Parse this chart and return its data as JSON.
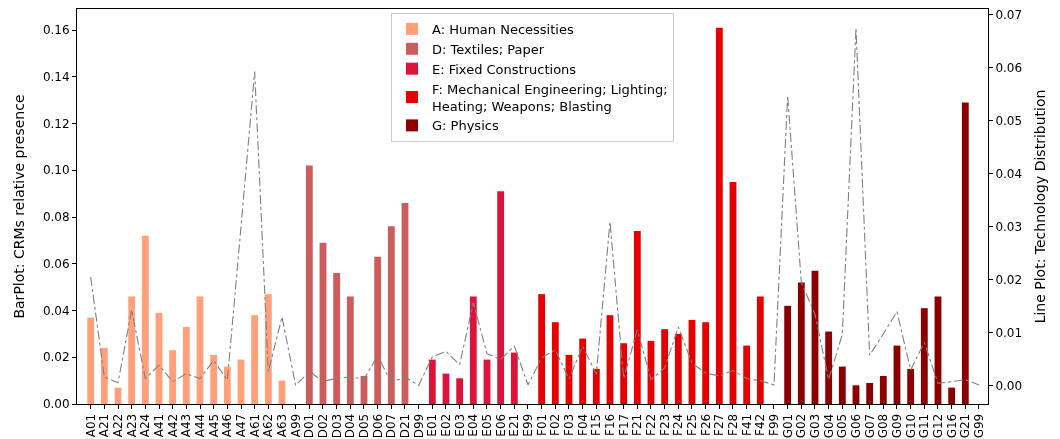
{
  "chart_data": {
    "type": "bar",
    "ylabel": "BarPlot: CRMs relative presence",
    "y2label": "Line Plot: Technology Distribution",
    "categories": [
      "A01",
      "A21",
      "A22",
      "A23",
      "A24",
      "A41",
      "A42",
      "A43",
      "A44",
      "A45",
      "A46",
      "A47",
      "A61",
      "A62",
      "A63",
      "A99",
      "D01",
      "D02",
      "D03",
      "D04",
      "D05",
      "D06",
      "D07",
      "D21",
      "D99",
      "E01",
      "E02",
      "E03",
      "E04",
      "E05",
      "E06",
      "E21",
      "E99",
      "F01",
      "F02",
      "F03",
      "F04",
      "F15",
      "F16",
      "F17",
      "F21",
      "F22",
      "F23",
      "F24",
      "F25",
      "F26",
      "F27",
      "F28",
      "F41",
      "F42",
      "F99",
      "G01",
      "G02",
      "G03",
      "G04",
      "G05",
      "G06",
      "G07",
      "G08",
      "G09",
      "G10",
      "G11",
      "G12",
      "G16",
      "G21",
      "G99"
    ],
    "series": [
      {
        "name": "A: Human Necessities",
        "color": "#ffa07a",
        "values": [
          0.037,
          0.024,
          0.007,
          0.046,
          0.072,
          0.039,
          0.023,
          0.033,
          0.046,
          0.021,
          0.016,
          0.019,
          0.038,
          0.047,
          0.01,
          0,
          null,
          null,
          null,
          null,
          null,
          null,
          null,
          null,
          null,
          null,
          null,
          null,
          null,
          null,
          null,
          null,
          null,
          null,
          null,
          null,
          null,
          null,
          null,
          null,
          null,
          null,
          null,
          null,
          null,
          null,
          null,
          null,
          null,
          null,
          null,
          null,
          null,
          null,
          null,
          null,
          null,
          null,
          null,
          null,
          null,
          null,
          null,
          null,
          null,
          null
        ]
      },
      {
        "name": "D: Textiles; Paper",
        "color": "#cd5c5c",
        "values": [
          null,
          null,
          null,
          null,
          null,
          null,
          null,
          null,
          null,
          null,
          null,
          null,
          null,
          null,
          null,
          null,
          0.102,
          0.069,
          0.056,
          0.046,
          0.012,
          0.063,
          0.076,
          0.086,
          0,
          null,
          null,
          null,
          null,
          null,
          null,
          null,
          null,
          null,
          null,
          null,
          null,
          null,
          null,
          null,
          null,
          null,
          null,
          null,
          null,
          null,
          null,
          null,
          null,
          null,
          null,
          null,
          null,
          null,
          null,
          null,
          null,
          null,
          null,
          null,
          null,
          null,
          null,
          null,
          null,
          null
        ]
      },
      {
        "name": "E: Fixed Constructions",
        "color": "#dc143c",
        "values": [
          null,
          null,
          null,
          null,
          null,
          null,
          null,
          null,
          null,
          null,
          null,
          null,
          null,
          null,
          null,
          null,
          null,
          null,
          null,
          null,
          null,
          null,
          null,
          null,
          null,
          0.019,
          0.013,
          0.011,
          0.046,
          0.019,
          0.091,
          0.022,
          0,
          null,
          null,
          null,
          null,
          null,
          null,
          null,
          null,
          null,
          null,
          null,
          null,
          null,
          null,
          null,
          null,
          null,
          null,
          null,
          null,
          null,
          null,
          null,
          null,
          null,
          null,
          null,
          null,
          null,
          null,
          null,
          null,
          null
        ]
      },
      {
        "name": "F: Mechanical Engineering; Lighting; Heating; Weapons; Blasting",
        "color": "#e60000",
        "values": [
          null,
          null,
          null,
          null,
          null,
          null,
          null,
          null,
          null,
          null,
          null,
          null,
          null,
          null,
          null,
          null,
          null,
          null,
          null,
          null,
          null,
          null,
          null,
          null,
          null,
          null,
          null,
          null,
          null,
          null,
          null,
          null,
          null,
          0.047,
          0.035,
          0.021,
          0.028,
          0.015,
          0.038,
          0.026,
          0.074,
          0.027,
          0.032,
          0.03,
          0.036,
          0.035,
          0.161,
          0.095,
          0.025,
          0.046,
          0,
          null,
          null,
          null,
          null,
          null,
          null,
          null,
          null,
          null,
          null,
          null,
          null,
          null,
          null,
          null
        ]
      },
      {
        "name": "G: Physics",
        "color": "#8b0000",
        "values": [
          null,
          null,
          null,
          null,
          null,
          null,
          null,
          null,
          null,
          null,
          null,
          null,
          null,
          null,
          null,
          null,
          null,
          null,
          null,
          null,
          null,
          null,
          null,
          null,
          null,
          null,
          null,
          null,
          null,
          null,
          null,
          null,
          null,
          null,
          null,
          null,
          null,
          null,
          null,
          null,
          null,
          null,
          null,
          null,
          null,
          null,
          null,
          null,
          null,
          null,
          null,
          0.042,
          0.052,
          0.057,
          0.031,
          0.016,
          0.008,
          0.009,
          0.012,
          0.025,
          0.015,
          0.041,
          0.046,
          0.007,
          0.129,
          0
        ]
      },
      {
        "type": "line",
        "axis": "y2",
        "color": "#808080",
        "line_style": "dashdot",
        "values": [
          0.0205,
          0.0017,
          0.0006,
          0.0143,
          0.0014,
          0.0039,
          0.0008,
          0.0023,
          0.0014,
          0.0048,
          0.0011,
          0.03,
          0.0592,
          0.0027,
          0.013,
          0.0001,
          0.0027,
          0.0009,
          0.0014,
          0.0017,
          0.0013,
          0.0057,
          0.0006,
          0.0017,
          0.0001,
          0.0055,
          0.0065,
          0.004,
          0.0157,
          0.0061,
          0.005,
          0.0075,
          0.0002,
          0.0053,
          0.0068,
          0.0013,
          0.0075,
          0.0022,
          0.0309,
          0.0014,
          0.0106,
          0.0012,
          0.0034,
          0.0111,
          0.0043,
          0.0024,
          0.0019,
          0.0029,
          0.0014,
          0.001,
          0.0002,
          0.0547,
          0.0195,
          0.0135,
          0.0012,
          0.0097,
          0.0674,
          0.0058,
          0.0098,
          0.014,
          0.003,
          0.0082,
          0.0005,
          0.0008,
          0.0012,
          0.0002
        ]
      }
    ],
    "ylim": [
      0,
      0.169
    ],
    "yticks": [
      {
        "value": 0,
        "label": "0.00"
      },
      0.02,
      0.04,
      0.06,
      0.08,
      {
        "value": 0.1,
        "label": "0.10"
      },
      0.12,
      0.14,
      0.16
    ],
    "y2lim": [
      -0.0034,
      0.071
    ],
    "y2ticks": [
      {
        "value": 0,
        "label": "0.00"
      },
      0.01,
      0.02,
      0.03,
      0.04,
      0.05,
      0.06,
      0.07
    ],
    "legend": "top",
    "grid": false
  }
}
